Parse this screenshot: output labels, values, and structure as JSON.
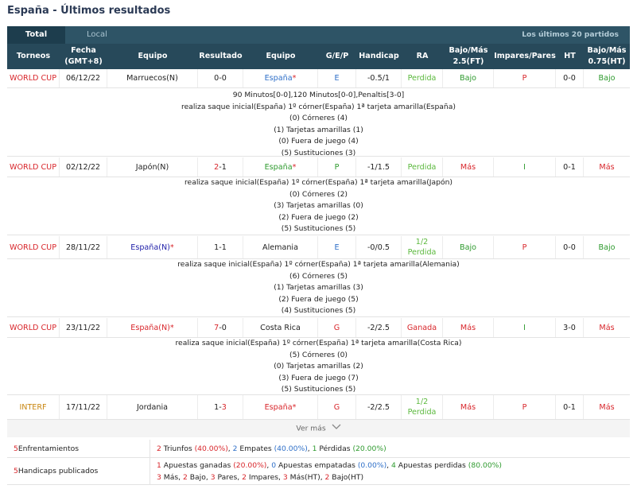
{
  "page_title": "España - Últimos resultados",
  "tabs": {
    "total": "Total",
    "local": "Local",
    "right": "Los últimos 20 partidos"
  },
  "headers": {
    "torneos": "Torneos",
    "fecha": "Fecha\n(GMT+8)",
    "equipo1": "Equipo",
    "resultado": "Resultado",
    "equipo2": "Equipo",
    "gep": "G/E/P",
    "handicap": "Handicap",
    "ra": "RA",
    "bajomas": "Bajo/Más\n2.5(FT)",
    "impares": "Impares/Pares",
    "ht": "HT",
    "bajomas075": "Bajo/Más\n0.75(HT)"
  },
  "matches": [
    {
      "torneo": "WORLD CUP",
      "fecha": "06/12/22",
      "equipo1": "Marruecos(N)",
      "res_home": "0",
      "res_sep": "-",
      "res_away": "0",
      "equipo2": "España",
      "star2": "*",
      "gep": "E",
      "handicap": "-0.5/1",
      "ra": "Perdida",
      "bajomas": "Bajo",
      "impares": "P",
      "ht": "0-0",
      "bajomas075": "Bajo",
      "details": [
        "90 Minutos[0-0],120 Minutos[0-0],Penaltis[3-0]",
        "realiza saque inicial(España)  1º córner(España)  1ª tarjeta amarilla(España)",
        "(0) Córneres (4)",
        "(1) Tarjetas amarillas (1)",
        "(0) Fuera de juego (4)",
        "(5) Sustituciones (3)"
      ]
    },
    {
      "torneo": "WORLD CUP",
      "fecha": "02/12/22",
      "equipo1": "Japón(N)",
      "res_home": "2",
      "res_sep": "-",
      "res_away": "1",
      "equipo2": "España",
      "star2": "*",
      "gep": "P",
      "handicap": "-1/1.5",
      "ra": "Perdida",
      "bajomas": "Más",
      "impares": "I",
      "ht": "0-1",
      "bajomas075": "Más",
      "details": [
        "realiza saque inicial(España)  1º córner(España)  1ª tarjeta amarilla(Japón)",
        "(0) Córneres (2)",
        "(3) Tarjetas amarillas (0)",
        "(2) Fuera de juego (2)",
        "(5) Sustituciones (5)"
      ]
    },
    {
      "torneo": "WORLD CUP",
      "fecha": "28/11/22",
      "equipo1": "España(N)",
      "star1": "*",
      "res_home": "1",
      "res_sep": "-",
      "res_away": "1",
      "equipo2": "Alemania",
      "gep": "E",
      "handicap": "-0/0.5",
      "ra1": "1/2",
      "ra2": "Perdida",
      "bajomas": "Bajo",
      "impares": "P",
      "ht": "0-0",
      "bajomas075": "Bajo",
      "details": [
        "realiza saque inicial(España)  1º córner(España)  1ª tarjeta amarilla(Alemania)",
        "(6) Córneres (5)",
        "(1) Tarjetas amarillas (3)",
        "(2) Fuera de juego (5)",
        "(4) Sustituciones (5)"
      ]
    },
    {
      "torneo": "WORLD CUP",
      "fecha": "23/11/22",
      "equipo1": "España(N)",
      "star1": "*",
      "res_home": "7",
      "res_sep": "-",
      "res_away": "0",
      "equipo2": "Costa Rica",
      "gep": "G",
      "handicap": "-2/2.5",
      "ra": "Ganada",
      "bajomas": "Más",
      "impares": "I",
      "ht": "3-0",
      "bajomas075": "Más",
      "details": [
        "realiza saque inicial(España)  1º córner(España)  1ª tarjeta amarilla(Costa Rica)",
        "(5) Córneres (0)",
        "(0) Tarjetas amarillas (2)",
        "(3) Fuera de juego (7)",
        "(5) Sustituciones (5)"
      ]
    },
    {
      "torneo": "INTERF",
      "fecha": "17/11/22",
      "equipo1": "Jordania",
      "res_home": "1",
      "res_sep": "-",
      "res_away": "3",
      "equipo2": "España",
      "star2": "*",
      "gep": "G",
      "handicap": "-2/2.5",
      "ra1": "1/2",
      "ra2": "Perdida",
      "bajomas": "Más",
      "impares": "P",
      "ht": "0-1",
      "bajomas075": "Más"
    }
  ],
  "ver_mas": "Ver más",
  "summary": {
    "enfrentamientos_n": "5",
    "enfrentamientos_label": " Enfrentamientos",
    "triunfos_n": "2",
    "triunfos_label": " Triunfos ",
    "triunfos_pct": "(40.00%)",
    "empates_n": "2",
    "empates_label": " Empates ",
    "empates_pct": "(40.00%)",
    "perdidas_n": "1",
    "perdidas_label": " Pérdidas ",
    "perdidas_pct": "(20.00%)",
    "handicaps_n": "5",
    "handicaps_label": " Handicaps publicados",
    "ganadas_n": "1",
    "ganadas_label": " Apuestas ganadas ",
    "ganadas_pct": "(20.00%)",
    "empatadas_n": "0",
    "empatadas_label": " Apuestas empatadas ",
    "empatadas_pct": "(0.00%)",
    "perdidas2_n": "4",
    "perdidas2_label": " Apuestas perdidas ",
    "perdidas2_pct": "(80.00%)",
    "mas_n": "3",
    "mas_label": " Más, ",
    "bajo_n": "2",
    "bajo_label": " Bajo, ",
    "pares_n": "3",
    "pares_label": " Pares, ",
    "impares_n": "2",
    "impares_label": " Impares, ",
    "masht_n": "3",
    "masht_label": " Más(HT), ",
    "bajoht_n": "2",
    "bajoht_label": " Bajo(HT)"
  }
}
